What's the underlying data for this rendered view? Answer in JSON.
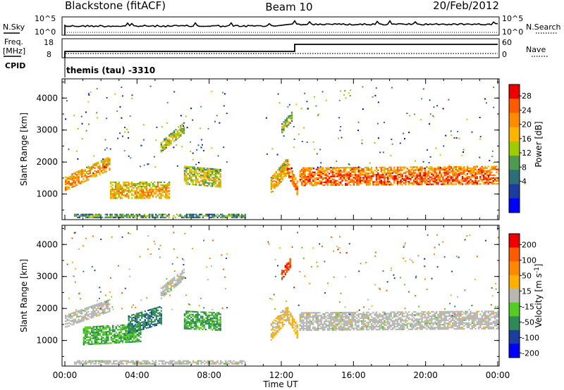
{
  "header": {
    "station": "Blackstone (fitACF)",
    "beam": "Beam 10",
    "date": "20/Feb/2012"
  },
  "noise_panel": {
    "left_label": "N.Sky",
    "right_label": "N.Search",
    "left_ticks": [
      "10^5",
      "10^0"
    ],
    "right_ticks": [
      "10^5",
      "10^0"
    ]
  },
  "freq_panel": {
    "left_label_line1": "Freq.",
    "left_label_line2": "[MHz]",
    "cpid_label": "CPID",
    "right_label": "Nave",
    "left_ticks": [
      "18",
      "8"
    ],
    "right_ticks": [
      "60",
      "0"
    ],
    "cpid_text": "themis (tau) -3310"
  },
  "colors": {
    "power_scale": [
      "#0000ff",
      "#1c3ca0",
      "#2e6e78",
      "#4e9a50",
      "#9fcc00",
      "#ffb400",
      "#ff8c00",
      "#ff5a00",
      "#ee0000"
    ],
    "velocity_scale": [
      "#0000ff",
      "#1c3ca0",
      "#2e8b57",
      "#55cc22",
      "#b5b5b5",
      "#ffb000",
      "#ff8800",
      "#ff5a00",
      "#ee0000"
    ],
    "ground_scatter": "#b8b8b0"
  },
  "chart_data": [
    {
      "type": "heatmap",
      "name": "power",
      "ylabel": "Slant Range [km]",
      "xlabel": "Time UT",
      "x_ticks": [
        "00:00",
        "04:00",
        "08:00",
        "12:00",
        "16:00",
        "20:00",
        "00:00"
      ],
      "y_ticks": [
        "1000",
        "2000",
        "3000",
        "4000"
      ],
      "xlim": [
        0,
        24
      ],
      "ylim": [
        200,
        4600
      ],
      "colorbar": {
        "label": "Power [dB]",
        "ticks": [
          "28",
          "24",
          "20",
          "16",
          "12",
          "8",
          "4"
        ],
        "range": [
          0,
          32
        ]
      },
      "regions": [
        {
          "t": [
            0.0,
            2.5
          ],
          "r_start": [
            1100,
            1750
          ],
          "width": 450,
          "value": 20
        },
        {
          "t": [
            2.5,
            5.8
          ],
          "r_start": [
            850,
            850
          ],
          "width": 500,
          "value": 18
        },
        {
          "t": [
            5.3,
            6.6
          ],
          "r_start": [
            2300,
            2900
          ],
          "width": 350,
          "value": 14
        },
        {
          "t": [
            6.6,
            8.6
          ],
          "r_start": [
            1300,
            1200
          ],
          "width": 550,
          "value": 15
        },
        {
          "t": [
            11.4,
            12.3
          ],
          "r_start": [
            1000,
            1600
          ],
          "width": 500,
          "value": 18
        },
        {
          "t": [
            12.3,
            12.9
          ],
          "r_start": [
            1600,
            900
          ],
          "width": 450,
          "value": 22
        },
        {
          "t": [
            13.0,
            24.0
          ],
          "r_start": [
            1250,
            1300
          ],
          "width": 550,
          "value": 23
        },
        {
          "t": [
            12.0,
            12.6
          ],
          "r_start": [
            2900,
            3300
          ],
          "width": 300,
          "value": 12
        },
        {
          "t": [
            0.5,
            10.0
          ],
          "r_start": [
            250,
            250
          ],
          "width": 120,
          "value": 9
        }
      ]
    },
    {
      "type": "heatmap",
      "name": "velocity",
      "ylabel": "Slant Range [km]",
      "xlabel": "Time UT",
      "x_ticks": [
        "00:00",
        "04:00",
        "08:00",
        "12:00",
        "16:00",
        "20:00",
        "00:00"
      ],
      "y_ticks": [
        "1000",
        "2000",
        "3000",
        "4000"
      ],
      "xlim": [
        0,
        24
      ],
      "ylim": [
        200,
        4600
      ],
      "colorbar": {
        "label": "Velocity [m s-1]",
        "ticks": [
          "200",
          "100",
          "50",
          "15",
          "-15",
          "-50",
          "-100",
          "-200"
        ],
        "range": [
          -250,
          250
        ]
      },
      "regions": [
        {
          "t": [
            0.0,
            2.5
          ],
          "r_start": [
            1400,
            1900
          ],
          "width": 400,
          "value": 0
        },
        {
          "t": [
            1.0,
            4.2
          ],
          "r_start": [
            850,
            950
          ],
          "width": 550,
          "value": -80
        },
        {
          "t": [
            3.5,
            5.3
          ],
          "r_start": [
            1200,
            1500
          ],
          "width": 550,
          "value": -120
        },
        {
          "t": [
            5.3,
            6.6
          ],
          "r_start": [
            2300,
            2900
          ],
          "width": 350,
          "value": 0
        },
        {
          "t": [
            6.6,
            8.6
          ],
          "r_start": [
            1350,
            1300
          ],
          "width": 550,
          "value": -90
        },
        {
          "t": [
            11.4,
            12.3
          ],
          "r_start": [
            1000,
            1600
          ],
          "width": 500,
          "value": 30
        },
        {
          "t": [
            12.0,
            12.5
          ],
          "r_start": [
            2900,
            3300
          ],
          "width": 300,
          "value": 180
        },
        {
          "t": [
            12.3,
            12.9
          ],
          "r_start": [
            1600,
            1000
          ],
          "width": 450,
          "value": 40
        },
        {
          "t": [
            13.0,
            24.0
          ],
          "r_start": [
            1300,
            1350
          ],
          "width": 550,
          "value": 0
        },
        {
          "t": [
            0.5,
            10.0
          ],
          "r_start": [
            250,
            250
          ],
          "width": 120,
          "value": 0
        }
      ]
    }
  ]
}
